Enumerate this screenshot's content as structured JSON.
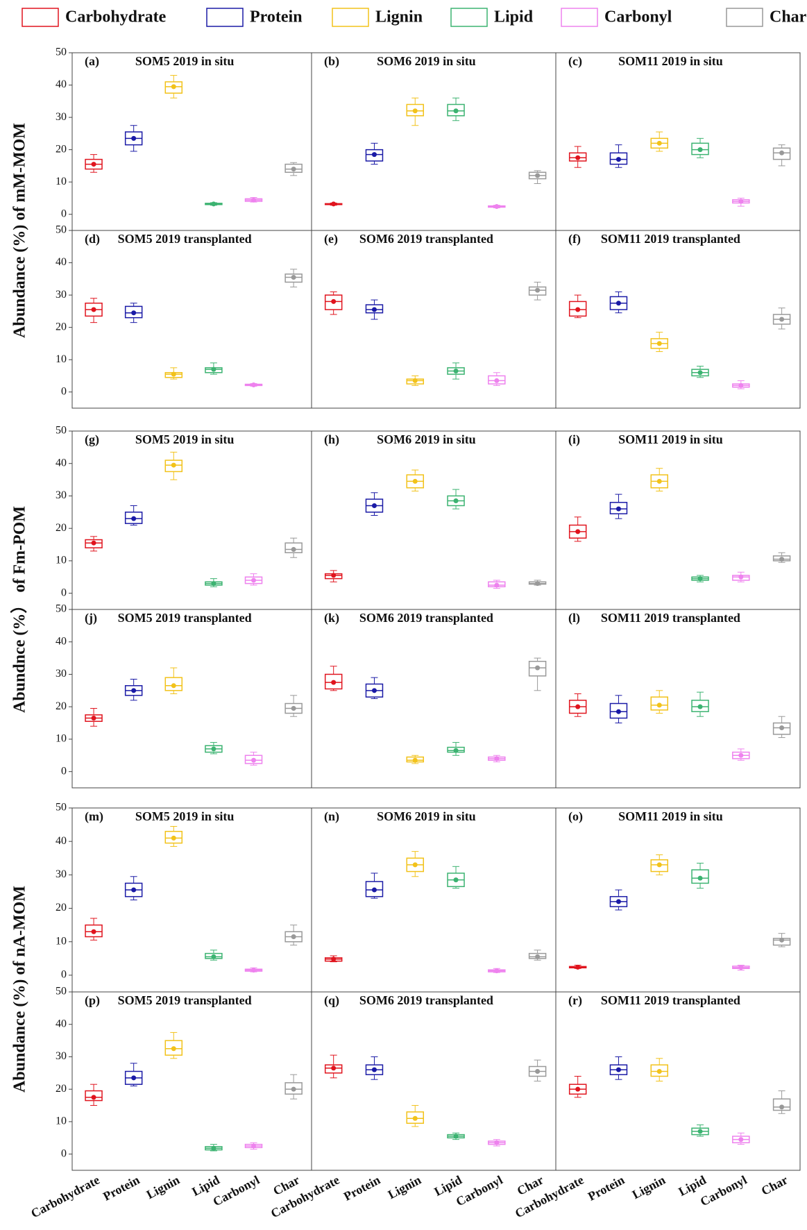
{
  "legend": [
    {
      "name": "Carbohydrate",
      "color": "#e0141e"
    },
    {
      "name": "Protein",
      "color": "#1a1aa6"
    },
    {
      "name": "Lignin",
      "color": "#f2c21a"
    },
    {
      "name": "Lipid",
      "color": "#3cb371"
    },
    {
      "name": "Carbonyl",
      "color": "#ee82ee"
    },
    {
      "name": "Char",
      "color": "#999999"
    }
  ],
  "y_axis_titles": [
    "Abundance (%) of mM-MOM",
    "Abundnce (%） of Fm-POM",
    "Abundance (%) of nA-MOM"
  ],
  "chart_data": [
    {
      "type": "box",
      "label": "(a)",
      "title": "SOM5 2019 in situ",
      "ylim": [
        -5,
        50
      ],
      "yticks": [
        0,
        10,
        20,
        30,
        40,
        50
      ],
      "boxes": [
        [
          13,
          14,
          15.5,
          17,
          18.5
        ],
        [
          19.5,
          21.5,
          23.5,
          25.5,
          27.5
        ],
        [
          36,
          37.5,
          39.5,
          41,
          43
        ],
        [
          2.8,
          3,
          3.2,
          3.4,
          3.6
        ],
        [
          3.8,
          4,
          4.4,
          4.8,
          5.2
        ],
        [
          12,
          13,
          14,
          15.5,
          16
        ]
      ]
    },
    {
      "type": "box",
      "label": "(b)",
      "title": "SOM6 2019 in situ",
      "ylim": [
        -5,
        50
      ],
      "boxes": [
        [
          2.8,
          3,
          3.2,
          3.3,
          3.5
        ],
        [
          15.5,
          16.5,
          18.5,
          20,
          22
        ],
        [
          27.5,
          30.5,
          32,
          34,
          36
        ],
        [
          29,
          30.5,
          32,
          34,
          36
        ],
        [
          2,
          2.2,
          2.4,
          2.6,
          2.8
        ],
        [
          9.5,
          11,
          12,
          13,
          13.5
        ]
      ]
    },
    {
      "type": "box",
      "label": "(c)",
      "title": "SOM11 2019 in situ",
      "ylim": [
        -5,
        50
      ],
      "boxes": [
        [
          14.5,
          16.5,
          17.5,
          19,
          21
        ],
        [
          14.5,
          15.5,
          17,
          19,
          21.5
        ],
        [
          19.5,
          20.5,
          22,
          23.5,
          25.5
        ],
        [
          17.5,
          18.5,
          20,
          22,
          23.5
        ],
        [
          2.5,
          3.5,
          4,
          4.5,
          5
        ],
        [
          15,
          17,
          19,
          20.5,
          21.5
        ]
      ]
    },
    {
      "type": "box",
      "label": "(d)",
      "title": "SOM5 2019 transplanted",
      "ylim": [
        -5,
        50
      ],
      "yticks": [
        0,
        10,
        20,
        30,
        40,
        50
      ],
      "boxes": [
        [
          21.5,
          23.5,
          25.5,
          27.5,
          29
        ],
        [
          21.5,
          23,
          24.5,
          26.5,
          27.5
        ],
        [
          4,
          4.5,
          5.5,
          6,
          7.5
        ],
        [
          5.5,
          6,
          7,
          7.5,
          9
        ],
        [
          1.8,
          2,
          2.2,
          2.4,
          2.6
        ],
        [
          32.5,
          34,
          35.5,
          36.5,
          38
        ]
      ]
    },
    {
      "type": "box",
      "label": "(e)",
      "title": "SOM6 2019 transplanted",
      "ylim": [
        -5,
        50
      ],
      "boxes": [
        [
          24,
          25.5,
          28,
          30,
          31
        ],
        [
          22.5,
          24.5,
          25.5,
          27,
          28.5
        ],
        [
          2,
          2.5,
          3.5,
          4,
          5
        ],
        [
          4,
          5.5,
          6.5,
          7.5,
          9
        ],
        [
          2,
          2.5,
          3.5,
          5,
          6
        ],
        [
          28.5,
          30,
          31.5,
          32.5,
          34
        ]
      ]
    },
    {
      "type": "box",
      "label": "(f)",
      "title": "SOM11 2019 transplanted",
      "ylim": [
        -5,
        50
      ],
      "boxes": [
        [
          23,
          23.5,
          25.5,
          28,
          30
        ],
        [
          24.5,
          25.5,
          27.5,
          29.5,
          31
        ],
        [
          12.5,
          13.5,
          15,
          16.5,
          18.5
        ],
        [
          4.5,
          5,
          6,
          7,
          8
        ],
        [
          1,
          1.5,
          2,
          2.5,
          3.5
        ],
        [
          19.5,
          21,
          22.5,
          24,
          26
        ]
      ]
    },
    {
      "type": "box",
      "label": "(g)",
      "title": "SOM5 2019 in situ",
      "ylim": [
        -5,
        50
      ],
      "yticks": [
        0,
        10,
        20,
        30,
        40,
        50
      ],
      "boxes": [
        [
          13,
          14,
          15.5,
          16.5,
          17.5
        ],
        [
          21,
          21.5,
          23,
          25,
          27
        ],
        [
          35,
          37.5,
          39.5,
          41,
          43.5
        ],
        [
          2,
          2.5,
          3,
          3.5,
          4.5
        ],
        [
          2.5,
          3,
          4,
          5,
          6
        ],
        [
          11,
          12.5,
          13.5,
          15.5,
          17
        ]
      ]
    },
    {
      "type": "box",
      "label": "(h)",
      "title": "SOM6 2019 in situ",
      "ylim": [
        -5,
        50
      ],
      "boxes": [
        [
          3.5,
          4.5,
          5.5,
          6,
          7
        ],
        [
          24,
          25,
          27,
          29,
          31
        ],
        [
          31.5,
          32.5,
          34.5,
          36.5,
          38
        ],
        [
          26,
          27,
          28.5,
          30,
          32
        ],
        [
          1.5,
          2,
          2.5,
          3.5,
          4
        ],
        [
          2.5,
          2.8,
          3,
          3.5,
          4
        ]
      ]
    },
    {
      "type": "box",
      "label": "(i)",
      "title": "SOM11 2019 in situ",
      "ylim": [
        -5,
        50
      ],
      "boxes": [
        [
          16,
          17,
          19,
          21,
          23.5
        ],
        [
          23,
          24.5,
          26,
          28,
          30.5
        ],
        [
          31.5,
          32.5,
          34.5,
          36.5,
          38.5
        ],
        [
          3.5,
          4,
          4.5,
          5,
          5.5
        ],
        [
          3.5,
          4,
          5,
          5.5,
          6.5
        ],
        [
          9.5,
          10,
          10.5,
          11.5,
          12.5
        ]
      ]
    },
    {
      "type": "box",
      "label": "(j)",
      "title": "SOM5 2019 transplanted",
      "ylim": [
        -5,
        50
      ],
      "yticks": [
        0,
        10,
        20,
        30,
        40,
        50
      ],
      "boxes": [
        [
          14,
          15.5,
          16.5,
          17.5,
          19.5
        ],
        [
          22,
          23.5,
          25,
          26.5,
          28.5
        ],
        [
          24,
          25,
          26.5,
          29,
          32
        ],
        [
          5.5,
          6,
          7,
          8,
          9
        ],
        [
          2,
          2.5,
          3.5,
          5,
          6
        ],
        [
          17,
          18,
          19.5,
          21,
          23.5
        ]
      ]
    },
    {
      "type": "box",
      "label": "(k)",
      "title": "SOM6 2019 transplanted",
      "ylim": [
        -5,
        50
      ],
      "boxes": [
        [
          25,
          25.5,
          27.5,
          30,
          32.5
        ],
        [
          22.5,
          23,
          25,
          27,
          29
        ],
        [
          2.5,
          3,
          3.5,
          4.5,
          5
        ],
        [
          5,
          6,
          6.5,
          7.5,
          9
        ],
        [
          3,
          3.5,
          4,
          4.5,
          5
        ],
        [
          25,
          29.5,
          32,
          34,
          35
        ]
      ]
    },
    {
      "type": "box",
      "label": "(l)",
      "title": "SOM11 2019 transplanted",
      "ylim": [
        -5,
        50
      ],
      "boxes": [
        [
          17,
          18,
          20,
          22,
          24
        ],
        [
          15,
          16.5,
          18.5,
          21,
          23.5
        ],
        [
          18,
          19,
          20.5,
          23,
          25
        ],
        [
          17,
          18.5,
          20,
          22,
          24.5
        ],
        [
          3.5,
          4,
          5,
          6,
          7
        ],
        [
          10.5,
          11.5,
          13.5,
          15,
          17
        ]
      ]
    },
    {
      "type": "box",
      "label": "(m)",
      "title": "SOM5 2019 in situ",
      "ylim": [
        -5,
        50
      ],
      "yticks": [
        0,
        10,
        20,
        30,
        40,
        50
      ],
      "boxes": [
        [
          10.5,
          11.5,
          13,
          15,
          17
        ],
        [
          22.5,
          23.5,
          25.5,
          27.5,
          29.5
        ],
        [
          38.5,
          39.5,
          41,
          43,
          44.5
        ],
        [
          4.5,
          5,
          5.5,
          6.5,
          7.5
        ],
        [
          1,
          1.2,
          1.5,
          1.8,
          2.2
        ],
        [
          9,
          10,
          11.5,
          13,
          15
        ]
      ]
    },
    {
      "type": "box",
      "label": "(n)",
      "title": "SOM6 2019 in situ",
      "ylim": [
        -5,
        50
      ],
      "boxes": [
        [
          4,
          4.2,
          4.8,
          5.2,
          5.8
        ],
        [
          23,
          23.5,
          25.5,
          28,
          30.5
        ],
        [
          29.5,
          31,
          33,
          35,
          37
        ],
        [
          26,
          26.5,
          28.5,
          30.5,
          32.5
        ],
        [
          0.8,
          1,
          1.3,
          1.6,
          2
        ],
        [
          4.5,
          5,
          5.5,
          6.5,
          7.5
        ]
      ]
    },
    {
      "type": "box",
      "label": "(o)",
      "title": "SOM11 2019 in situ",
      "ylim": [
        -5,
        50
      ],
      "boxes": [
        [
          2,
          2.2,
          2.4,
          2.6,
          3
        ],
        [
          19.5,
          20.5,
          22,
          23.5,
          25.5
        ],
        [
          30,
          31,
          33,
          34.5,
          36
        ],
        [
          26,
          27.5,
          29,
          31.5,
          33.5
        ],
        [
          1.5,
          2,
          2.3,
          2.7,
          3
        ],
        [
          8.5,
          9,
          10.5,
          11,
          12.5
        ]
      ]
    },
    {
      "type": "box",
      "label": "(p)",
      "title": "SOM5 2019 transplanted",
      "ylim": [
        -5,
        50
      ],
      "yticks": [
        0,
        10,
        20,
        30,
        40,
        50
      ],
      "categories": [
        "Carbohydrate",
        "Protein",
        "Lignin",
        "Lipid",
        "Carbonyl",
        "Char"
      ],
      "boxes": [
        [
          15,
          16.5,
          17.5,
          19.5,
          21.5
        ],
        [
          21,
          21.5,
          23.5,
          25.5,
          28
        ],
        [
          29.5,
          30.5,
          32.5,
          35,
          37.5
        ],
        [
          1,
          1.3,
          1.8,
          2.3,
          3
        ],
        [
          1.5,
          2,
          2.5,
          3,
          3.5
        ],
        [
          17,
          18.5,
          20,
          22,
          24.5
        ]
      ]
    },
    {
      "type": "box",
      "label": "(q)",
      "title": "SOM6 2019 transplanted",
      "ylim": [
        -5,
        50
      ],
      "categories": [
        "Carbohydrate",
        "Protein",
        "Lignin",
        "Lipid",
        "Carbonyl",
        "Char"
      ],
      "boxes": [
        [
          23.5,
          25,
          26.5,
          27.5,
          30.5
        ],
        [
          23,
          24.5,
          26,
          27.5,
          30
        ],
        [
          8.5,
          9.5,
          11,
          13,
          15
        ],
        [
          4.5,
          5,
          5.5,
          6,
          6.5
        ],
        [
          2.5,
          3,
          3.5,
          4,
          4.5
        ],
        [
          22.5,
          24,
          25.5,
          27,
          29
        ]
      ]
    },
    {
      "type": "box",
      "label": "(r)",
      "title": "SOM11 2019 transplanted",
      "ylim": [
        -5,
        50
      ],
      "categories": [
        "Carbohydrate",
        "Protein",
        "Lignin",
        "Lipid",
        "Carbonyl",
        "Char"
      ],
      "boxes": [
        [
          17.5,
          18.5,
          20,
          21.5,
          24
        ],
        [
          23,
          24.5,
          26,
          27.5,
          30
        ],
        [
          22.5,
          24,
          25.5,
          27.5,
          29.5
        ],
        [
          5.5,
          6,
          7,
          8,
          9
        ],
        [
          3,
          3.5,
          4.5,
          5.5,
          6.5
        ],
        [
          12.5,
          13.5,
          14.5,
          17,
          19.5
        ]
      ]
    }
  ]
}
